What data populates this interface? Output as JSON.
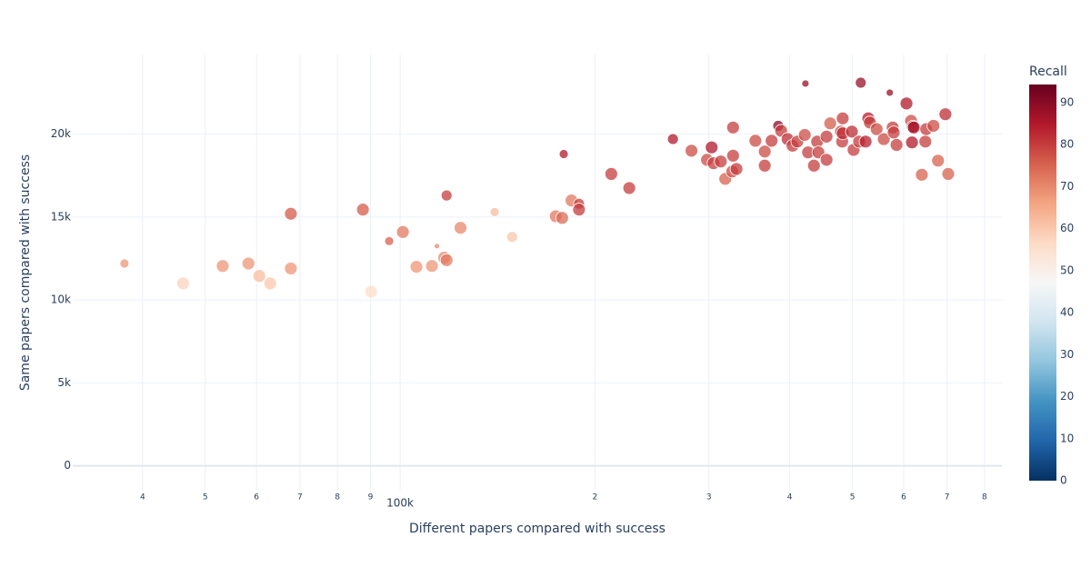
{
  "chart_data": {
    "type": "scatter",
    "x_label": "Different papers compared with success",
    "y_label": "Same papers compared with success",
    "x_log": true,
    "grid": true,
    "xlim": [
      31200,
      851000
    ],
    "ylim": [
      -1500,
      24800
    ],
    "xticks": [
      {
        "value": 40000,
        "label": "4"
      },
      {
        "value": 50000,
        "label": "5"
      },
      {
        "value": 60000,
        "label": "6"
      },
      {
        "value": 70000,
        "label": "7"
      },
      {
        "value": 80000,
        "label": "8"
      },
      {
        "value": 90000,
        "label": "9"
      },
      {
        "value": 100000,
        "label": "100k"
      },
      {
        "value": 200000,
        "label": "2"
      },
      {
        "value": 300000,
        "label": "3"
      },
      {
        "value": 400000,
        "label": "4"
      },
      {
        "value": 500000,
        "label": "5"
      },
      {
        "value": 600000,
        "label": "6"
      },
      {
        "value": 700000,
        "label": "7"
      },
      {
        "value": 800000,
        "label": "8"
      }
    ],
    "yticks": [
      0,
      {
        "value": 5000,
        "label": "5k"
      },
      {
        "value": 10000,
        "label": "10k"
      },
      {
        "value": 15000,
        "label": "15k"
      },
      {
        "value": 20000,
        "label": "20k"
      }
    ],
    "colorbar": {
      "title": "Recall",
      "clim": [
        0,
        94.3
      ],
      "ticks": [
        0,
        10,
        20,
        30,
        40,
        50,
        60,
        70,
        80,
        90
      ],
      "colorscale": [
        [
          0,
          "#053061"
        ],
        [
          0.1,
          "#2166ac"
        ],
        [
          0.2,
          "#4393c3"
        ],
        [
          0.3,
          "#92c5de"
        ],
        [
          0.4,
          "#d1e5f0"
        ],
        [
          0.5,
          "#f7f7f7"
        ],
        [
          0.6,
          "#fddbc7"
        ],
        [
          0.7,
          "#f4a582"
        ],
        [
          0.8,
          "#d6604d"
        ],
        [
          0.9,
          "#b2182b"
        ],
        [
          1,
          "#67001f"
        ]
      ]
    },
    "x": [
      37500,
      46200,
      53200,
      58300,
      60600,
      63000,
      67800,
      67800,
      87600,
      90200,
      96200,
      101000,
      106000,
      112000,
      114000,
      117000,
      118000,
      118000,
      124000,
      140000,
      149000,
      174000,
      178000,
      179000,
      184000,
      189000,
      189000,
      212000,
      226000,
      264000,
      282000,
      298000,
      303000,
      305000,
      313000,
      318000,
      326000,
      327000,
      327000,
      331000,
      354000,
      366000,
      366000,
      375000,
      384000,
      388000,
      397000,
      404000,
      411000,
      422000,
      423000,
      427000,
      436000,
      441000,
      443000,
      456000,
      456000,
      462000,
      480000,
      482000,
      483000,
      483000,
      499000,
      502000,
      512000,
      515000,
      524000,
      529000,
      532000,
      545000,
      559000,
      571000,
      577000,
      579000,
      585000,
      606000,
      616000,
      618000,
      620000,
      622000,
      640000,
      648000,
      650000,
      667000,
      678000,
      696000,
      703000
    ],
    "y": [
      12200,
      11000,
      12050,
      12200,
      11450,
      11000,
      15200,
      11900,
      15450,
      10500,
      13550,
      14100,
      12000,
      12050,
      13250,
      12550,
      16300,
      12400,
      14350,
      15300,
      13800,
      15050,
      14950,
      18800,
      16000,
      15800,
      15450,
      17600,
      16750,
      19700,
      19000,
      18450,
      19200,
      18250,
      18350,
      17300,
      17750,
      20400,
      18700,
      17900,
      19600,
      18950,
      18100,
      19600,
      20500,
      20200,
      19700,
      19300,
      19550,
      19950,
      23050,
      18900,
      18100,
      19550,
      18900,
      19850,
      18450,
      20650,
      20150,
      19550,
      20950,
      20050,
      20150,
      19050,
      19550,
      23100,
      19550,
      20950,
      20700,
      20300,
      19700,
      22500,
      20400,
      20100,
      19350,
      21850,
      20800,
      19500,
      20450,
      20400,
      17550,
      19550,
      20300,
      20500,
      18400,
      21200,
      17600
    ],
    "sizes": [
      5,
      7,
      7,
      7,
      7,
      7,
      7,
      7,
      7,
      7,
      5,
      7,
      7,
      7,
      3,
      7,
      6,
      7,
      7,
      5,
      6,
      7,
      7,
      5,
      7,
      6,
      7,
      7,
      7,
      6,
      7,
      7,
      7,
      7,
      7,
      7,
      7,
      7,
      7,
      7,
      7,
      7,
      7,
      7,
      6,
      7,
      7,
      7,
      7,
      7,
      4,
      7,
      7,
      7,
      7,
      7,
      7,
      7,
      7,
      7,
      7,
      7,
      7,
      7,
      7,
      6,
      7,
      7,
      7,
      7,
      7,
      4,
      7,
      7,
      7,
      7,
      7,
      7,
      7,
      7,
      7,
      7,
      7,
      7,
      7,
      7,
      7
    ],
    "colors": [
      68,
      58,
      68,
      68,
      62,
      60,
      76,
      68,
      76,
      56,
      75,
      72,
      68,
      68,
      70,
      70,
      80,
      72,
      70,
      62,
      60,
      72,
      74,
      85,
      72,
      80,
      80,
      80,
      80,
      85,
      78,
      78,
      85,
      80,
      80,
      75,
      78,
      80,
      80,
      80,
      78,
      78,
      80,
      80,
      90,
      80,
      82,
      80,
      80,
      78,
      88,
      80,
      80,
      80,
      80,
      80,
      80,
      76,
      80,
      80,
      80,
      82,
      82,
      80,
      80,
      88,
      84,
      84,
      80,
      78,
      78,
      88,
      80,
      80,
      80,
      85,
      78,
      85,
      90,
      85,
      75,
      80,
      80,
      78,
      75,
      82,
      75
    ]
  }
}
